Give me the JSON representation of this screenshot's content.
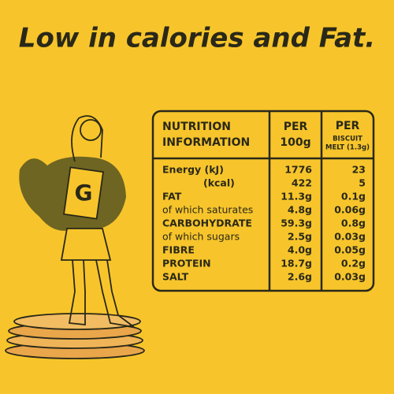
{
  "header": {
    "title": "Low in calories and Fat."
  },
  "table": {
    "columns": [
      [
        "NUTRITION",
        "INFORMATION"
      ],
      [
        "PER",
        "100g"
      ],
      [
        "PER",
        "BISCUIT",
        "MELT (1.3g)"
      ]
    ],
    "rows": [
      [
        "Energy (kJ)",
        "1776",
        "23"
      ],
      [
        "(kcal)",
        "422",
        "5"
      ],
      [
        "FAT",
        "11.3g",
        "0.1g"
      ],
      [
        "of which saturates",
        "4.8g",
        "0.06g"
      ],
      [
        "CARBOHYDRATE",
        "59.3g",
        "0.8g"
      ],
      [
        "of which sugars",
        "2.5g",
        "0.03g"
      ],
      [
        "FIBRE",
        "4.0g",
        "0.05g"
      ],
      [
        "PROTEIN",
        "18.7g",
        "0.2g"
      ],
      [
        "SALT",
        "2.6g",
        "0.03g"
      ]
    ]
  }
}
